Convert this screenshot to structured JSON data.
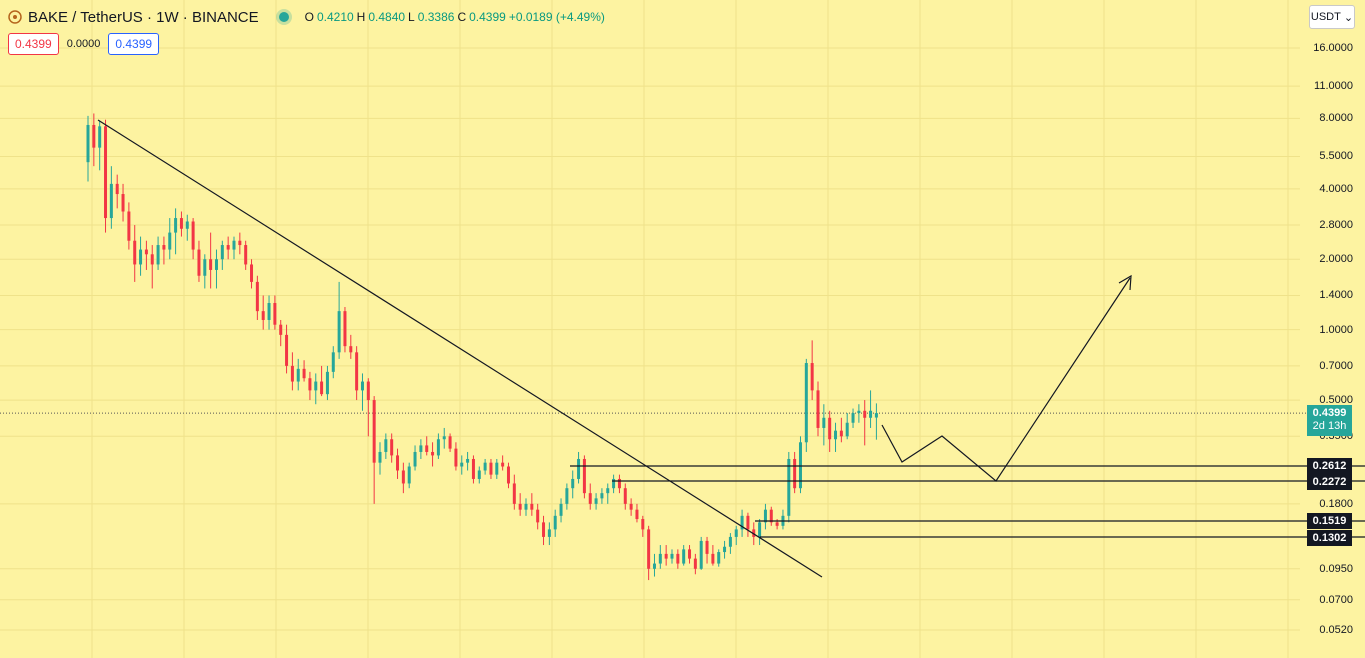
{
  "header": {
    "symbol": "BAKE / TetherUS · 1W · BINANCE",
    "ohlc": [
      {
        "k": "O",
        "v": "0.4210"
      },
      {
        "k": "H",
        "v": "0.4840"
      },
      {
        "k": "L",
        "v": "0.3386"
      },
      {
        "k": "C",
        "v": "0.4399"
      }
    ],
    "change": "+0.0189 (+4.49%)",
    "bid": "0.4399",
    "spread": "0.0000",
    "ask": "0.4399"
  },
  "currency": {
    "label": "USDT"
  },
  "price_axis": [
    "16.0000",
    "11.0000",
    "8.0000",
    "5.5000",
    "4.0000",
    "2.8000",
    "2.0000",
    "1.4000",
    "1.0000",
    "0.7000",
    "0.5000",
    "0.3500",
    "0.1800",
    "0.0950",
    "0.0700",
    "0.0520"
  ],
  "last_price": {
    "value": "0.4399",
    "countdown": "2d 13h"
  },
  "levels": [
    "0.2612",
    "0.2272",
    "0.1519",
    "0.1302"
  ],
  "colors": {
    "background": "#fdf3a1",
    "up": "#26a69a",
    "down": "#f23645",
    "drawing": "#131722"
  },
  "chart_data": {
    "type": "candlestick",
    "scale": "log",
    "symbol": "BAKE/USDT",
    "interval": "1W",
    "ylim": [
      0.045,
      20
    ],
    "candles": [
      [
        5.2,
        8.2,
        4.3,
        7.5
      ],
      [
        7.5,
        8.4,
        5.0,
        6.0
      ],
      [
        6.0,
        7.8,
        4.8,
        7.4
      ],
      [
        7.4,
        7.9,
        2.6,
        3.0
      ],
      [
        3.0,
        5.0,
        2.7,
        4.2
      ],
      [
        4.2,
        4.6,
        3.3,
        3.8
      ],
      [
        3.8,
        4.2,
        2.9,
        3.2
      ],
      [
        3.2,
        3.5,
        2.2,
        2.4
      ],
      [
        2.4,
        2.8,
        1.6,
        1.9
      ],
      [
        1.9,
        2.5,
        1.7,
        2.2
      ],
      [
        2.2,
        2.4,
        1.8,
        2.1
      ],
      [
        2.1,
        2.3,
        1.5,
        1.9
      ],
      [
        1.9,
        2.5,
        1.8,
        2.3
      ],
      [
        2.3,
        2.5,
        1.9,
        2.2
      ],
      [
        2.2,
        3.0,
        2.0,
        2.6
      ],
      [
        2.6,
        3.3,
        2.1,
        3.0
      ],
      [
        3.0,
        3.2,
        2.5,
        2.7
      ],
      [
        2.7,
        3.1,
        2.4,
        2.9
      ],
      [
        2.9,
        3.0,
        2.0,
        2.2
      ],
      [
        2.2,
        2.4,
        1.6,
        1.7
      ],
      [
        1.7,
        2.1,
        1.5,
        2.0
      ],
      [
        2.0,
        2.6,
        1.5,
        1.8
      ],
      [
        1.8,
        2.2,
        1.5,
        2.0
      ],
      [
        2.0,
        2.4,
        1.8,
        2.3
      ],
      [
        2.3,
        2.5,
        2.0,
        2.2
      ],
      [
        2.2,
        2.5,
        2.0,
        2.4
      ],
      [
        2.4,
        2.6,
        2.1,
        2.3
      ],
      [
        2.3,
        2.4,
        1.8,
        1.9
      ],
      [
        1.9,
        2.0,
        1.5,
        1.6
      ],
      [
        1.6,
        1.7,
        1.1,
        1.2
      ],
      [
        1.2,
        1.4,
        1.0,
        1.1
      ],
      [
        1.1,
        1.4,
        1.0,
        1.3
      ],
      [
        1.3,
        1.4,
        1.0,
        1.05
      ],
      [
        1.05,
        1.1,
        0.85,
        0.95
      ],
      [
        0.95,
        1.05,
        0.65,
        0.7
      ],
      [
        0.7,
        0.8,
        0.55,
        0.6
      ],
      [
        0.6,
        0.75,
        0.55,
        0.68
      ],
      [
        0.68,
        0.74,
        0.6,
        0.62
      ],
      [
        0.62,
        0.66,
        0.5,
        0.55
      ],
      [
        0.55,
        0.65,
        0.48,
        0.6
      ],
      [
        0.6,
        0.7,
        0.52,
        0.53
      ],
      [
        0.53,
        0.7,
        0.5,
        0.66
      ],
      [
        0.66,
        0.85,
        0.62,
        0.8
      ],
      [
        0.8,
        1.6,
        0.75,
        1.2
      ],
      [
        1.2,
        1.25,
        0.8,
        0.85
      ],
      [
        0.85,
        0.95,
        0.75,
        0.8
      ],
      [
        0.8,
        0.85,
        0.5,
        0.55
      ],
      [
        0.55,
        0.65,
        0.45,
        0.6
      ],
      [
        0.6,
        0.62,
        0.35,
        0.5
      ],
      [
        0.5,
        0.52,
        0.18,
        0.27
      ],
      [
        0.27,
        0.33,
        0.24,
        0.3
      ],
      [
        0.3,
        0.36,
        0.28,
        0.34
      ],
      [
        0.34,
        0.36,
        0.27,
        0.29
      ],
      [
        0.29,
        0.31,
        0.23,
        0.25
      ],
      [
        0.25,
        0.27,
        0.2,
        0.22
      ],
      [
        0.22,
        0.27,
        0.21,
        0.26
      ],
      [
        0.26,
        0.32,
        0.25,
        0.3
      ],
      [
        0.3,
        0.34,
        0.28,
        0.32
      ],
      [
        0.32,
        0.35,
        0.29,
        0.3
      ],
      [
        0.3,
        0.33,
        0.26,
        0.29
      ],
      [
        0.29,
        0.36,
        0.28,
        0.34
      ],
      [
        0.34,
        0.38,
        0.31,
        0.35
      ],
      [
        0.35,
        0.36,
        0.3,
        0.31
      ],
      [
        0.31,
        0.33,
        0.25,
        0.26
      ],
      [
        0.26,
        0.29,
        0.24,
        0.27
      ],
      [
        0.27,
        0.3,
        0.25,
        0.28
      ],
      [
        0.28,
        0.29,
        0.22,
        0.23
      ],
      [
        0.23,
        0.26,
        0.22,
        0.25
      ],
      [
        0.25,
        0.28,
        0.24,
        0.27
      ],
      [
        0.27,
        0.28,
        0.23,
        0.24
      ],
      [
        0.24,
        0.28,
        0.23,
        0.27
      ],
      [
        0.27,
        0.29,
        0.25,
        0.26
      ],
      [
        0.26,
        0.27,
        0.21,
        0.22
      ],
      [
        0.22,
        0.24,
        0.17,
        0.18
      ],
      [
        0.18,
        0.2,
        0.16,
        0.17
      ],
      [
        0.17,
        0.19,
        0.16,
        0.18
      ],
      [
        0.18,
        0.2,
        0.16,
        0.17
      ],
      [
        0.17,
        0.18,
        0.14,
        0.15
      ],
      [
        0.15,
        0.16,
        0.12,
        0.13
      ],
      [
        0.13,
        0.15,
        0.12,
        0.14
      ],
      [
        0.14,
        0.17,
        0.13,
        0.16
      ],
      [
        0.16,
        0.19,
        0.15,
        0.18
      ],
      [
        0.18,
        0.22,
        0.17,
        0.21
      ],
      [
        0.21,
        0.25,
        0.19,
        0.23
      ],
      [
        0.23,
        0.3,
        0.22,
        0.28
      ],
      [
        0.28,
        0.29,
        0.19,
        0.2
      ],
      [
        0.2,
        0.22,
        0.17,
        0.18
      ],
      [
        0.18,
        0.2,
        0.17,
        0.19
      ],
      [
        0.19,
        0.21,
        0.18,
        0.2
      ],
      [
        0.2,
        0.22,
        0.18,
        0.21
      ],
      [
        0.21,
        0.24,
        0.2,
        0.23
      ],
      [
        0.23,
        0.24,
        0.2,
        0.21
      ],
      [
        0.21,
        0.22,
        0.17,
        0.18
      ],
      [
        0.18,
        0.19,
        0.16,
        0.17
      ],
      [
        0.17,
        0.18,
        0.15,
        0.155
      ],
      [
        0.155,
        0.16,
        0.13,
        0.14
      ],
      [
        0.14,
        0.145,
        0.085,
        0.095
      ],
      [
        0.095,
        0.11,
        0.088,
        0.1
      ],
      [
        0.1,
        0.12,
        0.095,
        0.11
      ],
      [
        0.11,
        0.12,
        0.098,
        0.105
      ],
      [
        0.105,
        0.115,
        0.1,
        0.11
      ],
      [
        0.11,
        0.115,
        0.095,
        0.1
      ],
      [
        0.1,
        0.12,
        0.098,
        0.115
      ],
      [
        0.115,
        0.12,
        0.1,
        0.105
      ],
      [
        0.105,
        0.11,
        0.09,
        0.095
      ],
      [
        0.095,
        0.13,
        0.094,
        0.125
      ],
      [
        0.125,
        0.13,
        0.1,
        0.11
      ],
      [
        0.11,
        0.12,
        0.098,
        0.1
      ],
      [
        0.1,
        0.115,
        0.097,
        0.112
      ],
      [
        0.112,
        0.125,
        0.105,
        0.118
      ],
      [
        0.118,
        0.135,
        0.11,
        0.13
      ],
      [
        0.13,
        0.145,
        0.12,
        0.14
      ],
      [
        0.14,
        0.17,
        0.13,
        0.16
      ],
      [
        0.16,
        0.165,
        0.13,
        0.14
      ],
      [
        0.14,
        0.15,
        0.12,
        0.13
      ],
      [
        0.13,
        0.155,
        0.12,
        0.15
      ],
      [
        0.15,
        0.18,
        0.14,
        0.17
      ],
      [
        0.17,
        0.175,
        0.145,
        0.15
      ],
      [
        0.15,
        0.155,
        0.14,
        0.145
      ],
      [
        0.145,
        0.17,
        0.14,
        0.16
      ],
      [
        0.16,
        0.3,
        0.15,
        0.28
      ],
      [
        0.28,
        0.3,
        0.2,
        0.21
      ],
      [
        0.21,
        0.35,
        0.2,
        0.33
      ],
      [
        0.33,
        0.75,
        0.3,
        0.72
      ],
      [
        0.72,
        0.9,
        0.5,
        0.55
      ],
      [
        0.55,
        0.6,
        0.35,
        0.38
      ],
      [
        0.38,
        0.48,
        0.32,
        0.42
      ],
      [
        0.42,
        0.45,
        0.3,
        0.34
      ],
      [
        0.34,
        0.4,
        0.3,
        0.37
      ],
      [
        0.37,
        0.42,
        0.33,
        0.35
      ],
      [
        0.35,
        0.44,
        0.34,
        0.4
      ],
      [
        0.4,
        0.46,
        0.38,
        0.44
      ],
      [
        0.44,
        0.48,
        0.4,
        0.45
      ],
      [
        0.45,
        0.5,
        0.32,
        0.42
      ],
      [
        0.42,
        0.55,
        0.38,
        0.45
      ],
      [
        0.421,
        0.484,
        0.3386,
        0.4399
      ]
    ]
  }
}
